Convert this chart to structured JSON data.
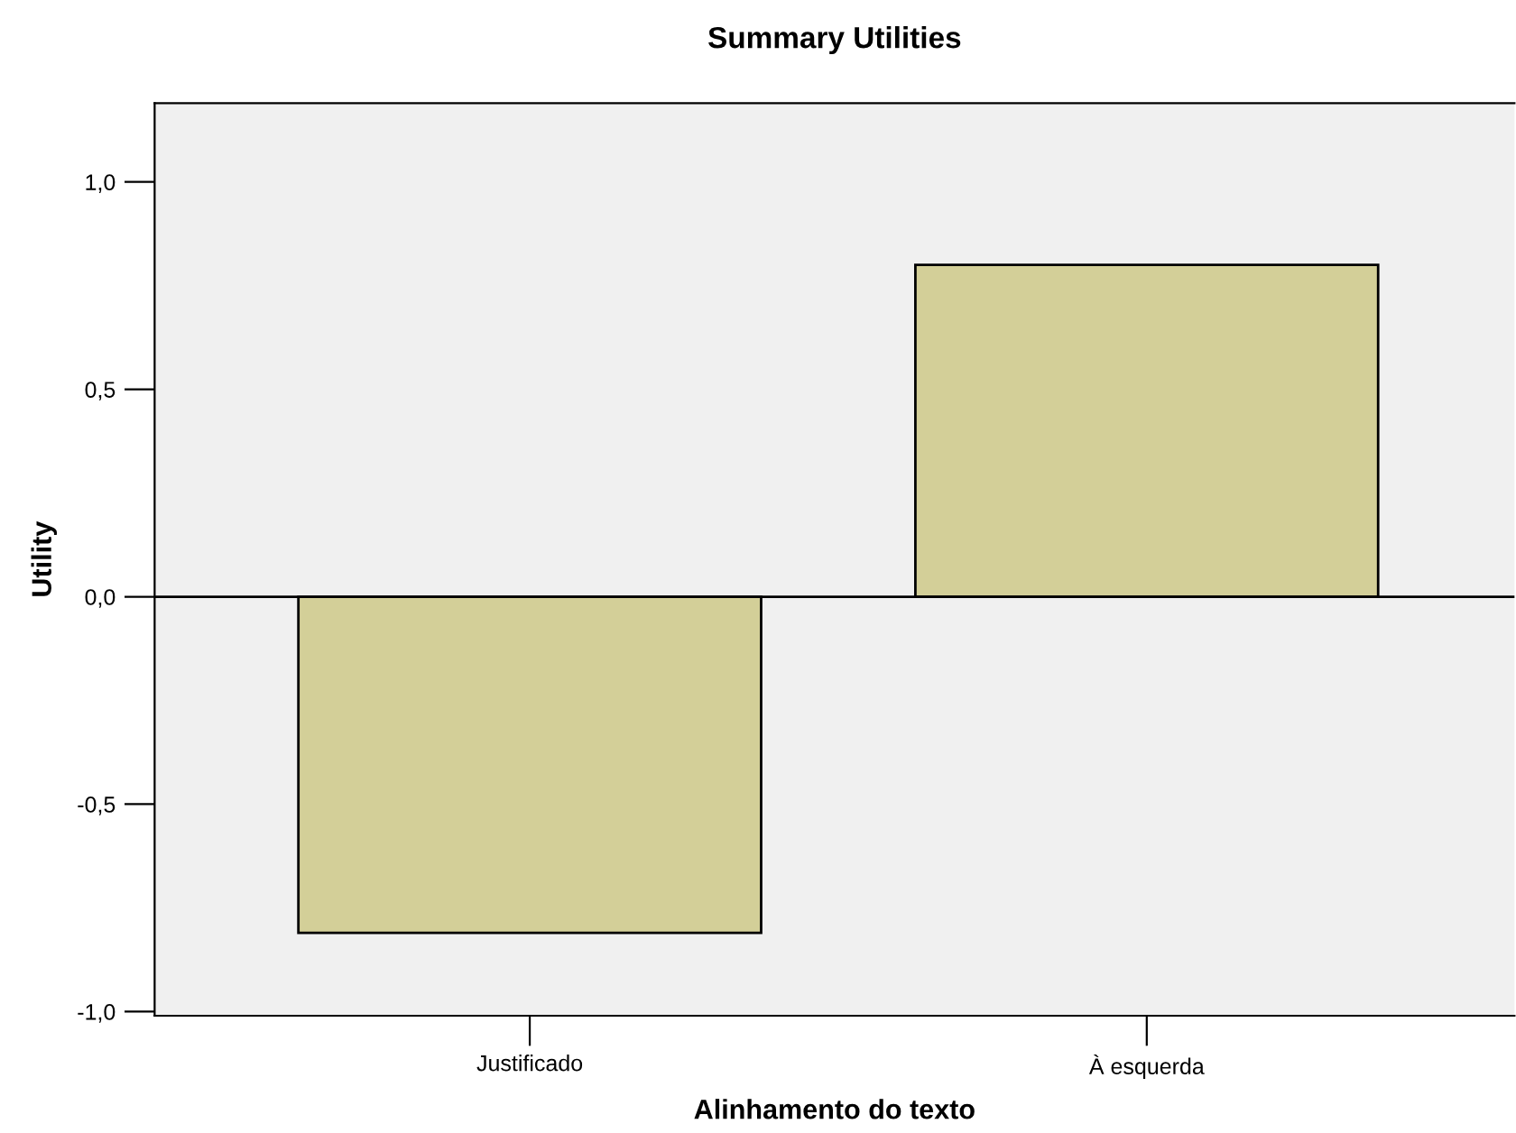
{
  "chart_data": {
    "type": "bar",
    "title": "Summary Utilities",
    "xlabel": "Alinhamento do texto",
    "ylabel": "Utility",
    "categories": [
      "Justificado",
      "À esquerda"
    ],
    "series": [
      {
        "color": "#d3cf98",
        "values": [
          -0.81,
          0.8
        ]
      }
    ],
    "ylim": [
      -1.01,
      1.19
    ],
    "yticks": [
      {
        "value": -1.0,
        "label": "-1,0"
      },
      {
        "value": -0.5,
        "label": "-0,5"
      },
      {
        "value": 0.0,
        "label": "0,0"
      },
      {
        "value": 0.5,
        "label": "0,5"
      },
      {
        "value": 1.0,
        "label": "1,0"
      }
    ],
    "ref_lines": [
      {
        "axis": "y",
        "value": 0,
        "color": "#000000"
      }
    ],
    "grid": false,
    "legend": false
  }
}
